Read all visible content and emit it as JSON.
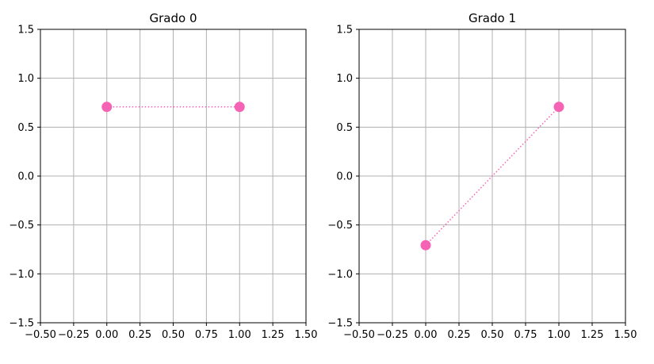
{
  "chart_data": [
    {
      "type": "scatter",
      "title": "Grado 0",
      "xlabel": "",
      "ylabel": "",
      "xlim": [
        -0.5,
        1.5
      ],
      "ylim": [
        -1.5,
        1.5
      ],
      "xticks": [
        "−0.50",
        "−0.25",
        "0.00",
        "0.25",
        "0.50",
        "0.75",
        "1.00",
        "1.25",
        "1.50"
      ],
      "yticks": [
        "−1.5",
        "−1.0",
        "−0.5",
        "0.0",
        "0.5",
        "1.0",
        "1.5"
      ],
      "grid": true,
      "series": [
        {
          "x": [
            0.0,
            1.0
          ],
          "y": [
            0.707,
            0.707
          ],
          "color": "#f564b4",
          "line_style": "dotted"
        }
      ]
    },
    {
      "type": "scatter",
      "title": "Grado 1",
      "xlabel": "",
      "ylabel": "",
      "xlim": [
        -0.5,
        1.5
      ],
      "ylim": [
        -1.5,
        1.5
      ],
      "xticks": [
        "−0.50",
        "−0.25",
        "0.00",
        "0.25",
        "0.50",
        "0.75",
        "1.00",
        "1.25",
        "1.50"
      ],
      "yticks": [
        "−1.5",
        "−1.0",
        "−0.5",
        "0.0",
        "0.5",
        "1.0",
        "1.5"
      ],
      "grid": true,
      "series": [
        {
          "x": [
            0.0,
            1.0
          ],
          "y": [
            -0.707,
            0.707
          ],
          "color": "#f564b4",
          "line_style": "dotted"
        }
      ]
    }
  ]
}
